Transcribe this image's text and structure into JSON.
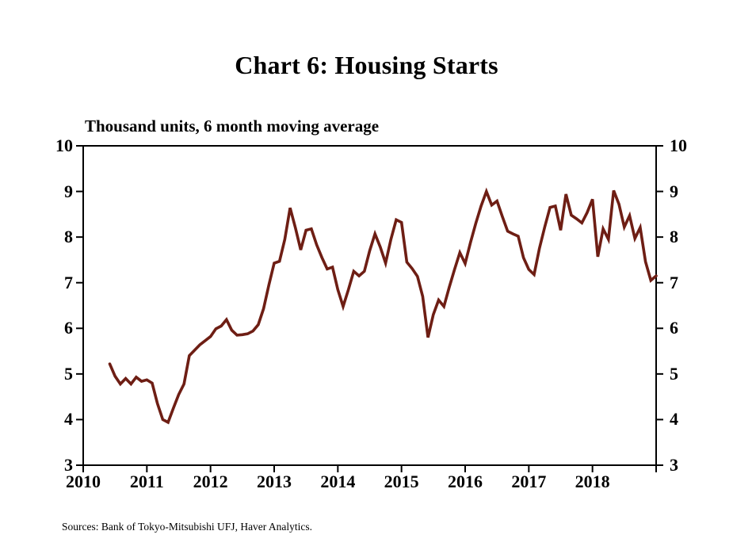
{
  "chart_data": {
    "type": "line",
    "title": "Chart 6: Housing Starts",
    "units_label": "Thousand units, 6 month moving average",
    "source": "Sources: Bank of Tokyo-Mitsubishi UFJ, Haver Analytics.",
    "ylim": [
      3,
      10
    ],
    "xlim_years": [
      2010,
      2019
    ],
    "y_ticks": [
      10,
      9,
      8,
      7,
      6,
      5,
      4,
      3
    ],
    "y_tick_labels_left": [
      "10",
      "9",
      "8",
      "7",
      "6",
      "5",
      "4",
      "3"
    ],
    "y_tick_labels_right": [
      "10",
      "9",
      "8",
      "7",
      "6",
      "5",
      "4",
      "3"
    ],
    "x_tick_years": [
      2010,
      2011,
      2012,
      2013,
      2014,
      2015,
      2016,
      2017,
      2018,
      2019
    ],
    "x_tick_labels": [
      "2010",
      "2011",
      "2012",
      "2013",
      "2014",
      "2015",
      "2016",
      "2017",
      "2018"
    ],
    "grid": false,
    "legend": "none",
    "axis_color": "#000000",
    "line_color": "#6e1e14",
    "series": [
      {
        "name": "Housing starts, 6 month moving average",
        "start_year": 2010,
        "start_month": 6,
        "frequency": "monthly",
        "values": [
          5.22,
          4.95,
          4.78,
          4.9,
          4.78,
          4.93,
          4.84,
          4.87,
          4.8,
          4.35,
          4.0,
          3.94,
          4.25,
          4.55,
          4.78,
          5.4,
          5.52,
          5.64,
          5.73,
          5.82,
          5.99,
          6.05,
          6.19,
          5.96,
          5.85,
          5.86,
          5.88,
          5.94,
          6.08,
          6.43,
          6.95,
          7.43,
          7.47,
          7.95,
          8.64,
          8.2,
          7.72,
          8.15,
          8.18,
          7.83,
          7.55,
          7.3,
          7.34,
          6.85,
          6.48,
          6.85,
          7.25,
          7.15,
          7.25,
          7.7,
          8.07,
          7.78,
          7.43,
          7.95,
          8.38,
          8.32,
          7.45,
          7.31,
          7.14,
          6.7,
          5.8,
          6.3,
          6.62,
          6.48,
          6.9,
          7.29,
          7.66,
          7.42,
          7.88,
          8.3,
          8.68,
          9.0,
          8.7,
          8.79,
          8.45,
          8.13,
          8.07,
          8.02,
          7.55,
          7.29,
          7.18,
          7.75,
          8.22,
          8.65,
          8.68,
          8.15,
          8.94,
          8.48,
          8.4,
          8.31,
          8.54,
          8.83,
          7.57,
          8.18,
          7.95,
          9.02,
          8.72,
          8.22,
          8.47,
          7.97,
          8.21,
          7.46,
          7.05,
          7.15
        ]
      }
    ]
  }
}
